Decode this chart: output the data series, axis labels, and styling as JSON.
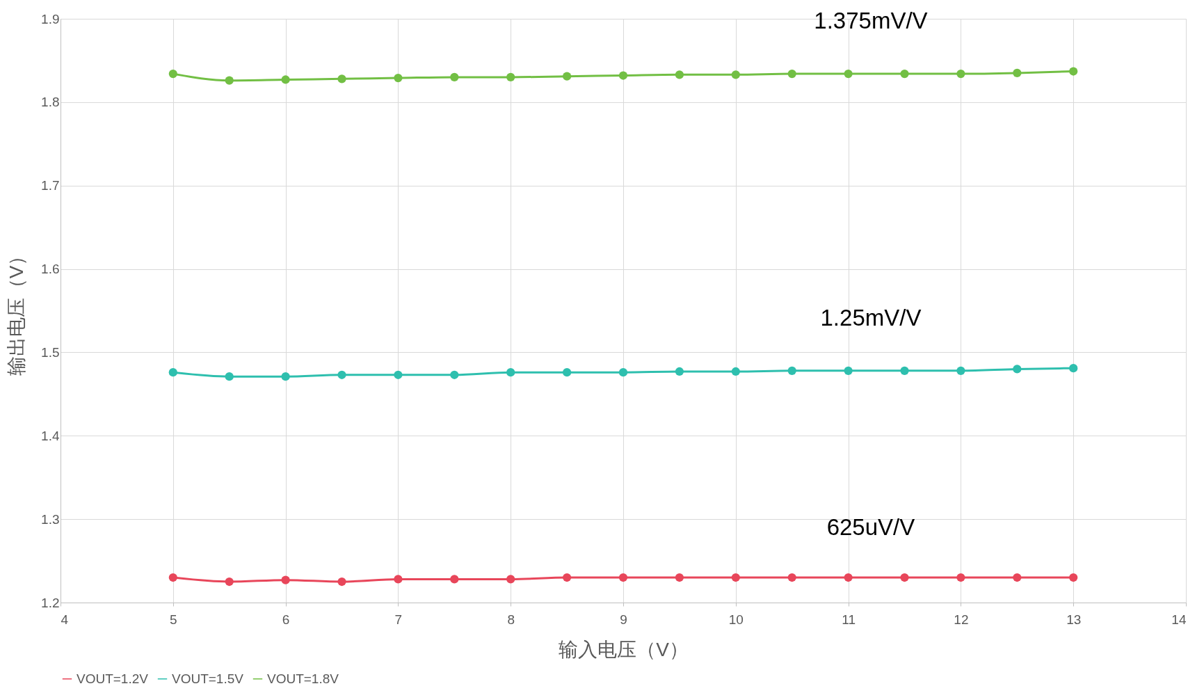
{
  "chart_data": {
    "type": "line",
    "x": [
      5,
      5.5,
      6,
      6.5,
      7,
      7.5,
      8,
      8.5,
      9,
      9.5,
      10,
      10.5,
      11,
      11.5,
      12,
      12.5,
      13
    ],
    "series": [
      {
        "name": "VOUT=1.2V",
        "color": "#e8465a",
        "values": [
          1.23,
          1.225,
          1.227,
          1.225,
          1.228,
          1.228,
          1.228,
          1.23,
          1.23,
          1.23,
          1.23,
          1.23,
          1.23,
          1.23,
          1.23,
          1.23,
          1.23
        ]
      },
      {
        "name": "VOUT=1.5V",
        "color": "#2ebfae",
        "values": [
          1.476,
          1.471,
          1.471,
          1.473,
          1.473,
          1.473,
          1.476,
          1.476,
          1.476,
          1.477,
          1.477,
          1.478,
          1.478,
          1.478,
          1.478,
          1.48,
          1.481
        ]
      },
      {
        "name": "VOUT=1.8V",
        "color": "#72bf44",
        "values": [
          1.834,
          1.826,
          1.827,
          1.828,
          1.829,
          1.83,
          1.83,
          1.831,
          1.832,
          1.833,
          1.833,
          1.834,
          1.834,
          1.834,
          1.834,
          1.835,
          1.837
        ]
      }
    ],
    "xlabel": "输入电压（V）",
    "ylabel": "输出电压（V）",
    "xlim": [
      4,
      14
    ],
    "xticks": [
      4,
      5,
      6,
      7,
      8,
      9,
      10,
      11,
      12,
      13,
      14
    ],
    "ylim": [
      1.2,
      1.9
    ],
    "yticks": [
      1.2,
      1.3,
      1.4,
      1.5,
      1.6,
      1.7,
      1.8,
      1.9
    ],
    "annotations": [
      "1.375mV/V",
      "1.25mV/V",
      "625uV/V"
    ],
    "grid": true,
    "legend": "bottom",
    "marker": "circle",
    "line_style": "solid"
  }
}
